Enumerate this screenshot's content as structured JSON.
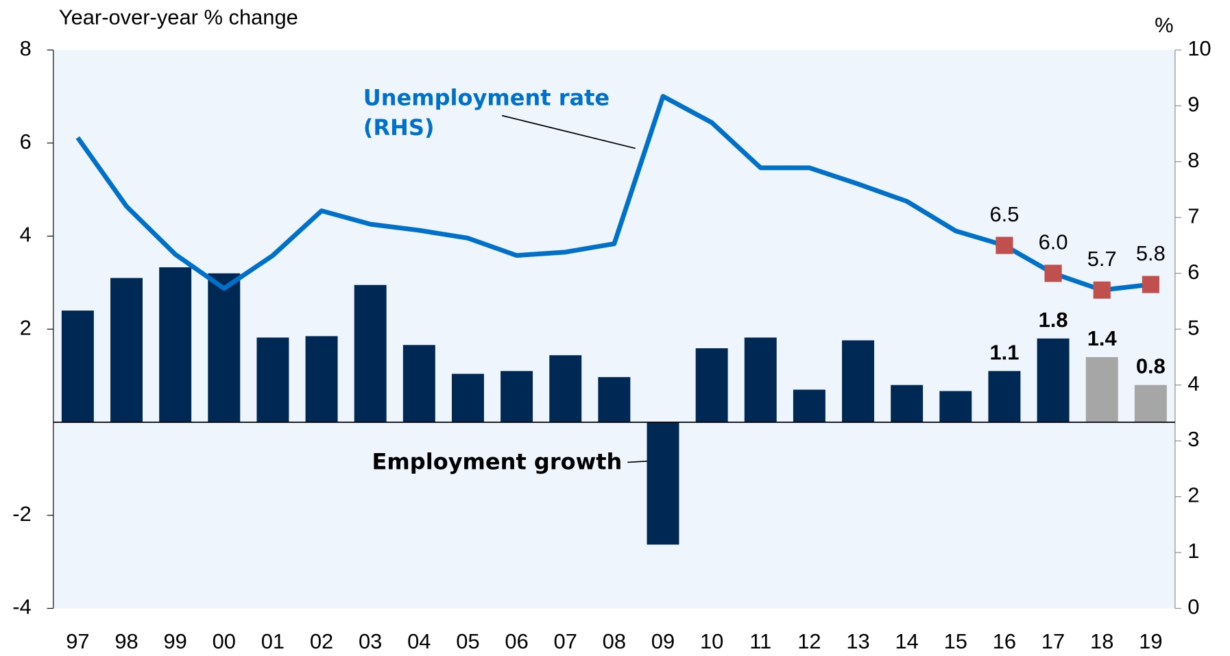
{
  "chart_data": {
    "type": "bar_line",
    "y_label": "Year-over-year % change",
    "y2_label": "%",
    "categories": [
      "97",
      "98",
      "99",
      "00",
      "01",
      "02",
      "03",
      "04",
      "05",
      "06",
      "07",
      "08",
      "09",
      "10",
      "11",
      "12",
      "13",
      "14",
      "15",
      "16",
      "17",
      "18",
      "19"
    ],
    "series": [
      {
        "name": "Employment growth",
        "type": "bar",
        "color": "#002855",
        "colors": [
          "#002855",
          "#002855",
          "#002855",
          "#002855",
          "#002855",
          "#002855",
          "#002855",
          "#002855",
          "#002855",
          "#002855",
          "#002855",
          "#002855",
          "#002855",
          "#002855",
          "#002855",
          "#002855",
          "#002855",
          "#002855",
          "#002855",
          "#002855",
          "#002855",
          "#a6a6a6",
          "#a6a6a6"
        ],
        "values": [
          2.4,
          3.1,
          3.33,
          3.2,
          1.82,
          1.85,
          2.95,
          1.66,
          1.04,
          1.1,
          1.44,
          0.97,
          -2.63,
          1.59,
          1.82,
          0.7,
          1.76,
          0.8,
          0.67,
          1.1,
          1.8,
          1.4,
          0.8
        ],
        "value_labels": [
          null,
          null,
          null,
          null,
          null,
          null,
          null,
          null,
          null,
          null,
          null,
          null,
          null,
          null,
          null,
          null,
          null,
          null,
          null,
          "1.1",
          "1.8",
          "1.4",
          "0.8"
        ]
      },
      {
        "name": "Unemployment rate\n(RHS)",
        "type": "line",
        "axis": "y2",
        "color": "#0070c8",
        "marker_color": "#c0504d",
        "values": [
          8.43,
          7.2,
          6.34,
          5.73,
          6.32,
          7.12,
          6.88,
          6.77,
          6.63,
          6.32,
          6.38,
          6.53,
          9.17,
          8.7,
          7.89,
          7.89,
          7.6,
          7.29,
          6.76,
          6.5,
          6.0,
          5.7,
          5.8
        ],
        "value_labels": [
          null,
          null,
          null,
          null,
          null,
          null,
          null,
          null,
          null,
          null,
          null,
          null,
          null,
          null,
          null,
          null,
          null,
          null,
          null,
          "6.5",
          "6.0",
          "5.7",
          "5.8"
        ]
      }
    ],
    "ylim": [
      -4,
      8
    ],
    "yticks": [
      -4,
      -2,
      2,
      4,
      6,
      8
    ],
    "y2lim": [
      0,
      10
    ],
    "y2ticks": [
      0,
      1,
      2,
      3,
      4,
      5,
      6,
      7,
      8,
      9,
      10
    ]
  }
}
